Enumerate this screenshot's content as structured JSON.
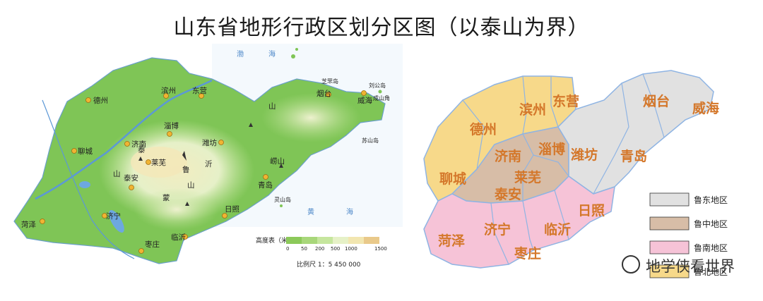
{
  "title": "山东省地形行政区划分区图（以泰山为界）",
  "physical_map": {
    "cities": [
      "德州",
      "滨州",
      "东营",
      "济南",
      "淄博",
      "潍坊",
      "烟台",
      "威海",
      "聊城",
      "泰安",
      "莱芜",
      "临沂",
      "日照",
      "济宁",
      "菏泽",
      "枣庄",
      "青岛"
    ],
    "mountains": [
      "泰",
      "山",
      "鲁",
      "山",
      "蒙",
      "山",
      "沂",
      "崂山"
    ],
    "sea_labels": {
      "bohai": [
        "渤",
        "海"
      ],
      "yellow_sea": [
        "黄",
        "海"
      ]
    },
    "places": [
      "芝罘岛",
      "刘公岛",
      "成山角",
      "苏山岛",
      "灵山岛"
    ],
    "elevation_legend": {
      "title": "高度表（米）",
      "ticks": [
        "0",
        "50",
        "200",
        "500",
        "1000",
        "1500"
      ],
      "colors": [
        "#8cc95a",
        "#a8d77a",
        "#c6e69e",
        "#e6f1c7",
        "#f2e6b0",
        "#e9c98a"
      ]
    },
    "scale": "比例尺 1：5 450 000"
  },
  "region_map": {
    "regions": [
      {
        "label": "德州",
        "group": "ludong_north"
      },
      {
        "label": "滨州",
        "group": "ludong_north"
      },
      {
        "label": "东营",
        "group": "ludong_north"
      },
      {
        "label": "聊城",
        "group": "ludong_north"
      },
      {
        "label": "济南",
        "group": "luzhong"
      },
      {
        "label": "淄博",
        "group": "luzhong"
      },
      {
        "label": "莱芜",
        "group": "luzhong"
      },
      {
        "label": "泰安",
        "group": "luzhong"
      },
      {
        "label": "潍坊",
        "group": "ludong"
      },
      {
        "label": "青岛",
        "group": "ludong"
      },
      {
        "label": "烟台",
        "group": "ludong"
      },
      {
        "label": "威海",
        "group": "ludong"
      },
      {
        "label": "日照",
        "group": "lunan"
      },
      {
        "label": "临沂",
        "group": "lunan"
      },
      {
        "label": "济宁",
        "group": "lunan"
      },
      {
        "label": "菏泽",
        "group": "lunan"
      },
      {
        "label": "枣庄",
        "group": "lunan"
      }
    ],
    "legend": [
      {
        "label": "鲁东地区",
        "color": "#e1e1e1"
      },
      {
        "label": "鲁中地区",
        "color": "#d7bda7"
      },
      {
        "label": "鲁南地区",
        "color": "#f6c3d7"
      },
      {
        "label": "鲁北地区",
        "color": "#f7d98a"
      }
    ],
    "colors": {
      "north": "#f7d98a",
      "central": "#d7bda7",
      "east": "#e1e1e1",
      "south": "#f6c3d7",
      "border": "#8fb4e3",
      "label": "#d4772a"
    }
  },
  "watermark": "地学侠看世界"
}
